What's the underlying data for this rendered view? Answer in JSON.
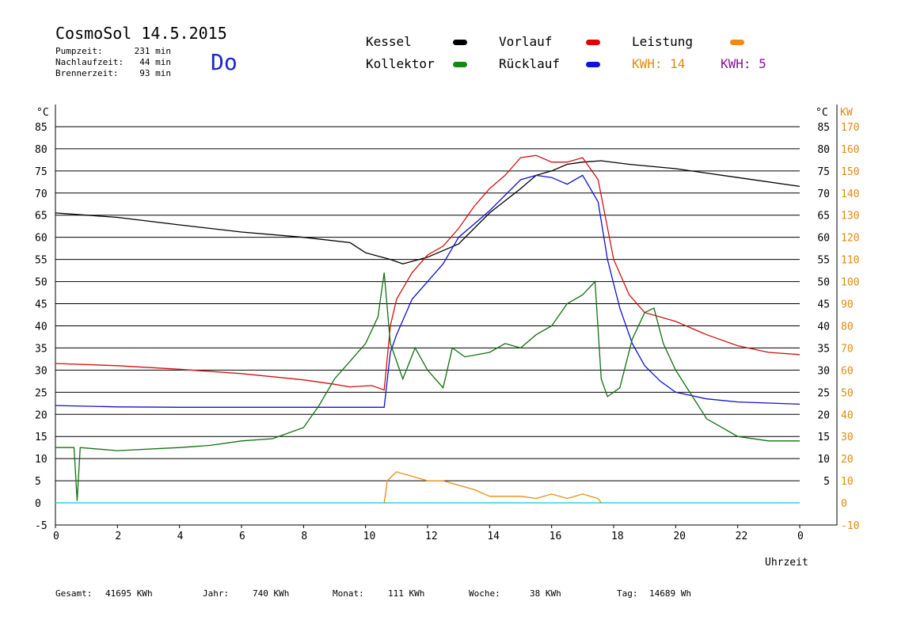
{
  "header": {
    "title": "CosmoSol 14.5.2015",
    "day": "Do",
    "stats": [
      {
        "label": "Pumpzeit:",
        "value": "231 min"
      },
      {
        "label": "Nachlaufzeit:",
        "value": "44 min"
      },
      {
        "label": "Brennerzeit:",
        "value": "93 min"
      }
    ]
  },
  "legend": {
    "items": [
      {
        "name": "Kessel",
        "color": "#000000"
      },
      {
        "name": "Vorlauf",
        "color": "#e00000"
      },
      {
        "name": "Leistung",
        "color": "#f08a10"
      },
      {
        "name": "Kollektor",
        "color": "#108a10"
      },
      {
        "name": "Rücklauf",
        "color": "#1010e0"
      }
    ],
    "kwh_orange": "KWH: 14",
    "kwh_purple": "KWH: 5",
    "kwh_orange_color": "#e08a10",
    "kwh_purple_color": "#8a10a0"
  },
  "footer": {
    "items": [
      {
        "label": "Gesamt:",
        "value": "41695 KWh"
      },
      {
        "label": "Jahr:",
        "value": "740 KWh"
      },
      {
        "label": "Monat:",
        "value": "111 KWh"
      },
      {
        "label": "Woche:",
        "value": "38 KWh"
      },
      {
        "label": "Tag:",
        "value": "14689 Wh"
      }
    ]
  },
  "chart_data": {
    "type": "line",
    "xlabel": "Uhrzeit",
    "ylabel_left": "°C",
    "ylabel_right_1": "°C",
    "ylabel_right_2": "KW",
    "xlim": [
      0,
      24
    ],
    "ylim": [
      -5,
      90
    ],
    "x_ticks": [
      "0",
      "2",
      "4",
      "6",
      "8",
      "10",
      "12",
      "14",
      "16",
      "18",
      "20",
      "22",
      "0"
    ],
    "y_ticks_left": [
      -5,
      0,
      5,
      10,
      15,
      20,
      25,
      30,
      35,
      40,
      45,
      50,
      55,
      60,
      65,
      70,
      75,
      80,
      85
    ],
    "y_ticks_right_c": [
      5,
      10,
      15,
      20,
      25,
      30,
      35,
      40,
      45,
      50,
      55,
      60,
      65,
      70,
      75,
      80,
      85
    ],
    "y_ticks_right_kw": [
      -10,
      0,
      10,
      20,
      30,
      40,
      50,
      60,
      70,
      80,
      90,
      100,
      110,
      120,
      130,
      140,
      150,
      160,
      170
    ],
    "grid": "horizontal",
    "series": [
      {
        "name": "Kessel",
        "color": "#000000",
        "points": [
          [
            0,
            65.5
          ],
          [
            2,
            64.5
          ],
          [
            4,
            62.8
          ],
          [
            6,
            61.2
          ],
          [
            8,
            60
          ],
          [
            9.5,
            58.8
          ],
          [
            10,
            56.5
          ],
          [
            10.8,
            55
          ],
          [
            11.2,
            54
          ],
          [
            12,
            55.5
          ],
          [
            13,
            58.5
          ],
          [
            14,
            65.5
          ],
          [
            15,
            71
          ],
          [
            15.5,
            74
          ],
          [
            16,
            75
          ],
          [
            16.5,
            76.5
          ],
          [
            17,
            77
          ],
          [
            17.6,
            77.3
          ],
          [
            18.5,
            76.5
          ],
          [
            20,
            75.5
          ],
          [
            22,
            73.5
          ],
          [
            24,
            71.5
          ]
        ]
      },
      {
        "name": "Vorlauf",
        "color": "#d01010",
        "points": [
          [
            0,
            31.5
          ],
          [
            2,
            31
          ],
          [
            4,
            30.2
          ],
          [
            6,
            29.2
          ],
          [
            8,
            27.8
          ],
          [
            9,
            26.8
          ],
          [
            9.5,
            26.2
          ],
          [
            10.2,
            26.5
          ],
          [
            10.6,
            25.5
          ],
          [
            10.8,
            40
          ],
          [
            11,
            46
          ],
          [
            11.5,
            52
          ],
          [
            12,
            56
          ],
          [
            12.5,
            58
          ],
          [
            13,
            62
          ],
          [
            13.5,
            67
          ],
          [
            14,
            71
          ],
          [
            14.5,
            74
          ],
          [
            15,
            78
          ],
          [
            15.5,
            78.5
          ],
          [
            16,
            77
          ],
          [
            16.5,
            77
          ],
          [
            17,
            78
          ],
          [
            17.5,
            73
          ],
          [
            18,
            55
          ],
          [
            18.5,
            47
          ],
          [
            19,
            43
          ],
          [
            19.5,
            42
          ],
          [
            20,
            41
          ],
          [
            21,
            38
          ],
          [
            22,
            35.5
          ],
          [
            23,
            34
          ],
          [
            24,
            33.5
          ]
        ]
      },
      {
        "name": "Rücklauf",
        "color": "#1010d0",
        "points": [
          [
            0,
            22
          ],
          [
            2,
            21.7
          ],
          [
            4,
            21.6
          ],
          [
            6,
            21.6
          ],
          [
            8,
            21.6
          ],
          [
            10,
            21.6
          ],
          [
            10.6,
            21.6
          ],
          [
            10.8,
            34
          ],
          [
            11,
            38
          ],
          [
            11.5,
            46
          ],
          [
            12,
            50
          ],
          [
            12.5,
            54
          ],
          [
            13,
            60
          ],
          [
            14,
            66
          ],
          [
            15,
            73
          ],
          [
            15.5,
            74
          ],
          [
            16,
            73.5
          ],
          [
            16.5,
            72
          ],
          [
            17,
            74
          ],
          [
            17.5,
            68
          ],
          [
            17.8,
            55
          ],
          [
            18.2,
            44
          ],
          [
            18.6,
            36
          ],
          [
            19,
            31
          ],
          [
            19.5,
            27.5
          ],
          [
            20,
            25
          ],
          [
            21,
            23.5
          ],
          [
            22,
            22.8
          ],
          [
            24,
            22.3
          ]
        ]
      },
      {
        "name": "Kollektor",
        "color": "#107010",
        "points": [
          [
            0,
            12.5
          ],
          [
            0.6,
            12.5
          ],
          [
            0.7,
            0.5
          ],
          [
            0.8,
            12.5
          ],
          [
            2,
            11.8
          ],
          [
            4,
            12.5
          ],
          [
            5,
            13
          ],
          [
            6,
            14
          ],
          [
            7,
            14.5
          ],
          [
            8,
            17
          ],
          [
            8.5,
            22
          ],
          [
            9,
            28
          ],
          [
            9.5,
            32
          ],
          [
            10,
            36
          ],
          [
            10.4,
            42
          ],
          [
            10.6,
            52
          ],
          [
            10.8,
            36
          ],
          [
            11.2,
            28
          ],
          [
            11.6,
            35
          ],
          [
            12,
            30
          ],
          [
            12.5,
            26
          ],
          [
            12.8,
            35
          ],
          [
            13.2,
            33
          ],
          [
            14,
            34
          ],
          [
            14.5,
            36
          ],
          [
            15,
            35
          ],
          [
            15.5,
            38
          ],
          [
            16,
            40
          ],
          [
            16.5,
            45
          ],
          [
            17,
            47
          ],
          [
            17.4,
            50
          ],
          [
            17.6,
            28
          ],
          [
            17.8,
            24
          ],
          [
            18.2,
            26
          ],
          [
            18.6,
            37
          ],
          [
            19,
            43
          ],
          [
            19.3,
            44
          ],
          [
            19.6,
            36
          ],
          [
            20,
            30
          ],
          [
            21,
            19
          ],
          [
            22,
            15
          ],
          [
            23,
            14
          ],
          [
            24,
            14
          ]
        ]
      },
      {
        "name": "Leistung",
        "color": "#f08a10",
        "points": [
          [
            10.6,
            0
          ],
          [
            10.7,
            5
          ],
          [
            11,
            7
          ],
          [
            11.5,
            6
          ],
          [
            12,
            5
          ],
          [
            12.5,
            5
          ],
          [
            13,
            4
          ],
          [
            13.5,
            3
          ],
          [
            14,
            1.5
          ],
          [
            15,
            1.5
          ],
          [
            15.5,
            1
          ],
          [
            16,
            2
          ],
          [
            16.5,
            1
          ],
          [
            17,
            2
          ],
          [
            17.5,
            1
          ],
          [
            17.6,
            0
          ]
        ]
      }
    ]
  }
}
